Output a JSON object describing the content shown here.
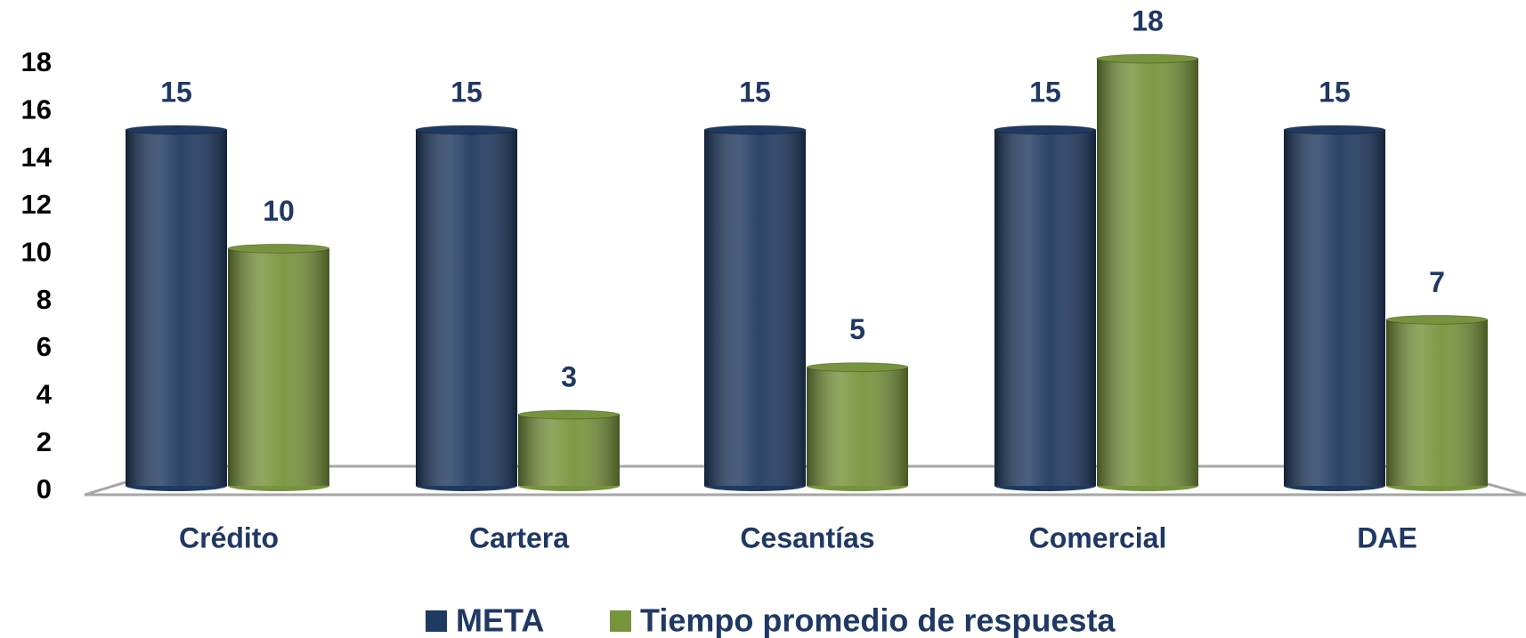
{
  "chart_data": {
    "type": "bar",
    "categories": [
      "Crédito",
      "Cartera",
      "Cesantías",
      "Comercial",
      "DAE"
    ],
    "series": [
      {
        "name": "META",
        "color": "#1f3a60",
        "values": [
          15,
          15,
          15,
          15,
          15
        ]
      },
      {
        "name": "Tiempo promedio de respuesta",
        "color": "#77933c",
        "values": [
          10,
          3,
          5,
          18,
          7
        ]
      }
    ],
    "ylim": [
      0,
      18
    ],
    "yticks": [
      0,
      2,
      4,
      6,
      8,
      10,
      12,
      14,
      16,
      18
    ],
    "grid": false,
    "legend": "bottom"
  }
}
